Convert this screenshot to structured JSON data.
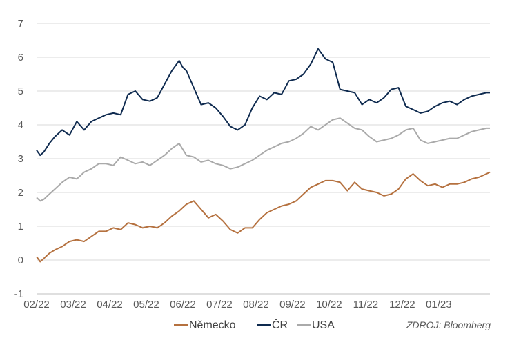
{
  "chart_data": {
    "type": "line",
    "title": "",
    "xlabel": "",
    "ylabel": "",
    "ylim": [
      -1,
      7
    ],
    "yticks": [
      -1,
      0,
      1,
      2,
      3,
      4,
      5,
      6,
      7
    ],
    "xlim": [
      0,
      12.4
    ],
    "x_tick_labels": [
      "02/22",
      "03/22",
      "04/22",
      "05/22",
      "06/22",
      "07/22",
      "08/22",
      "09/22",
      "10/22",
      "11/22",
      "12/22",
      "01/23"
    ],
    "grid": "horizontal",
    "legend_position": "bottom",
    "source": "ZDROJ: Bloomberg",
    "series": [
      {
        "name": "Německo",
        "color": "#B5713F",
        "x": [
          0,
          0.1,
          0.2,
          0.35,
          0.5,
          0.7,
          0.9,
          1.1,
          1.3,
          1.5,
          1.7,
          1.9,
          2.1,
          2.3,
          2.5,
          2.7,
          2.9,
          3.1,
          3.3,
          3.5,
          3.7,
          3.9,
          4.1,
          4.3,
          4.5,
          4.7,
          4.9,
          5.1,
          5.3,
          5.5,
          5.7,
          5.9,
          6.1,
          6.3,
          6.5,
          6.7,
          6.9,
          7.1,
          7.3,
          7.5,
          7.7,
          7.9,
          8.1,
          8.3,
          8.5,
          8.7,
          8.9,
          9.1,
          9.3,
          9.5,
          9.7,
          9.9,
          10.1,
          10.3,
          10.5,
          10.7,
          10.9,
          11.1,
          11.3,
          11.5,
          11.7,
          11.9,
          12.1,
          12.3,
          12.4
        ],
        "y": [
          0.1,
          -0.05,
          0.05,
          0.2,
          0.3,
          0.4,
          0.55,
          0.6,
          0.55,
          0.7,
          0.85,
          0.85,
          0.95,
          0.9,
          1.1,
          1.05,
          0.95,
          1.0,
          0.95,
          1.1,
          1.3,
          1.45,
          1.65,
          1.75,
          1.5,
          1.25,
          1.35,
          1.15,
          0.9,
          0.8,
          0.95,
          0.95,
          1.2,
          1.4,
          1.5,
          1.6,
          1.65,
          1.75,
          1.95,
          2.15,
          2.25,
          2.35,
          2.35,
          2.3,
          2.05,
          2.3,
          2.1,
          2.05,
          2.0,
          1.9,
          1.95,
          2.1,
          2.4,
          2.55,
          2.35,
          2.2,
          2.25,
          2.15,
          2.25,
          2.25,
          2.3,
          2.4,
          2.45,
          2.55,
          2.6
        ]
      },
      {
        "name": "ČR",
        "color": "#0E2A4F",
        "x": [
          0,
          0.1,
          0.2,
          0.35,
          0.5,
          0.7,
          0.9,
          1.1,
          1.3,
          1.5,
          1.7,
          1.9,
          2.1,
          2.3,
          2.5,
          2.7,
          2.9,
          3.1,
          3.3,
          3.5,
          3.7,
          3.9,
          4.0,
          4.1,
          4.3,
          4.5,
          4.7,
          4.9,
          5.1,
          5.3,
          5.5,
          5.7,
          5.9,
          6.1,
          6.3,
          6.5,
          6.7,
          6.9,
          7.1,
          7.3,
          7.5,
          7.7,
          7.9,
          8.0,
          8.1,
          8.3,
          8.5,
          8.7,
          8.9,
          9.1,
          9.3,
          9.5,
          9.7,
          9.9,
          10.1,
          10.3,
          10.5,
          10.7,
          10.9,
          11.1,
          11.3,
          11.5,
          11.7,
          11.9,
          12.1,
          12.3,
          12.4
        ],
        "y": [
          3.25,
          3.1,
          3.2,
          3.45,
          3.65,
          3.85,
          3.7,
          4.1,
          3.85,
          4.1,
          4.2,
          4.3,
          4.35,
          4.3,
          4.9,
          5.0,
          4.75,
          4.7,
          4.8,
          5.2,
          5.6,
          5.9,
          5.7,
          5.6,
          5.1,
          4.6,
          4.65,
          4.5,
          4.25,
          3.95,
          3.85,
          4.0,
          4.5,
          4.85,
          4.75,
          4.95,
          4.9,
          5.3,
          5.35,
          5.5,
          5.8,
          6.25,
          5.95,
          5.9,
          5.85,
          5.05,
          5.0,
          4.95,
          4.6,
          4.75,
          4.65,
          4.8,
          5.05,
          5.1,
          4.55,
          4.45,
          4.35,
          4.4,
          4.55,
          4.65,
          4.7,
          4.6,
          4.75,
          4.85,
          4.9,
          4.95,
          4.95
        ]
      },
      {
        "name": "USA",
        "color": "#AAAAAA",
        "x": [
          0,
          0.1,
          0.2,
          0.35,
          0.5,
          0.7,
          0.9,
          1.1,
          1.3,
          1.5,
          1.7,
          1.9,
          2.1,
          2.3,
          2.5,
          2.7,
          2.9,
          3.1,
          3.3,
          3.5,
          3.7,
          3.9,
          4.1,
          4.3,
          4.5,
          4.7,
          4.9,
          5.1,
          5.3,
          5.5,
          5.7,
          5.9,
          6.1,
          6.3,
          6.5,
          6.7,
          6.9,
          7.1,
          7.3,
          7.5,
          7.7,
          7.9,
          8.1,
          8.3,
          8.5,
          8.7,
          8.9,
          9.1,
          9.3,
          9.5,
          9.7,
          9.9,
          10.1,
          10.3,
          10.5,
          10.7,
          10.9,
          11.1,
          11.3,
          11.5,
          11.7,
          11.9,
          12.1,
          12.3,
          12.4
        ],
        "y": [
          1.85,
          1.75,
          1.8,
          1.95,
          2.1,
          2.3,
          2.45,
          2.4,
          2.6,
          2.7,
          2.85,
          2.85,
          2.8,
          3.05,
          2.95,
          2.85,
          2.9,
          2.8,
          2.95,
          3.1,
          3.3,
          3.45,
          3.1,
          3.05,
          2.9,
          2.95,
          2.85,
          2.8,
          2.7,
          2.75,
          2.85,
          2.95,
          3.1,
          3.25,
          3.35,
          3.45,
          3.5,
          3.6,
          3.75,
          3.95,
          3.85,
          4.0,
          4.15,
          4.2,
          4.05,
          3.9,
          3.85,
          3.65,
          3.5,
          3.55,
          3.6,
          3.7,
          3.85,
          3.9,
          3.55,
          3.45,
          3.5,
          3.55,
          3.6,
          3.6,
          3.7,
          3.8,
          3.85,
          3.9,
          3.9
        ]
      }
    ]
  }
}
